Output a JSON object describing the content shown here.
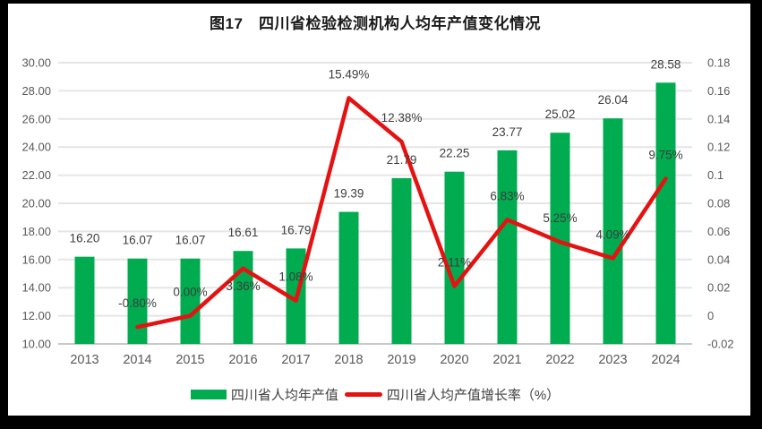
{
  "title": "图17　四川省检验检测机构人均年产值变化情况",
  "colors": {
    "bar": "#00AC4F",
    "line": "#E51212",
    "grid": "#E5E5E5",
    "axis_line": "#C9C9C9",
    "tick_text": "#595959",
    "label_text": "#3D3D3D",
    "background": "#FFFFFF",
    "border": "#000000"
  },
  "chart_data": {
    "type": "bar",
    "subtype": "combo-bar-line-dual-axis",
    "title": "图17　四川省检验检测机构人均年产值变化情况",
    "categories": [
      "2013",
      "2014",
      "2015",
      "2016",
      "2017",
      "2018",
      "2019",
      "2020",
      "2021",
      "2022",
      "2023",
      "2024"
    ],
    "series": [
      {
        "name": "四川省人均年产值",
        "type": "bar",
        "axis": "left",
        "color": "#00AC4F",
        "values": [
          16.2,
          16.07,
          16.07,
          16.61,
          16.79,
          19.39,
          21.79,
          22.25,
          23.77,
          25.02,
          26.04,
          28.58
        ],
        "labels": [
          "16.20",
          "16.07",
          "16.07",
          "16.61",
          "16.79",
          "19.39",
          "21.79",
          "22.25",
          "23.77",
          "25.02",
          "26.04",
          "28.58"
        ]
      },
      {
        "name": "四川省人均产值增长率（%）",
        "type": "line",
        "axis": "right",
        "color": "#E51212",
        "values": [
          null,
          -0.008,
          0.0,
          0.0336,
          0.0108,
          0.1549,
          0.1238,
          0.0211,
          0.0683,
          0.0525,
          0.0409,
          0.0975
        ],
        "labels": [
          null,
          "-0.80%",
          "0.00%",
          "3.36%",
          "1.08%",
          "15.49%",
          "12.38%",
          "2.11%",
          "6.83%",
          "5.25%",
          "4.09%",
          "9.75%"
        ],
        "label_sides": [
          null,
          "above",
          "above",
          "below",
          "above",
          "above",
          "above",
          "above",
          "above",
          "above",
          "above",
          "above"
        ]
      }
    ],
    "left_axis": {
      "min": 10,
      "max": 30,
      "step": 2,
      "ticks": [
        "30.00",
        "28.00",
        "26.00",
        "24.00",
        "22.00",
        "20.00",
        "18.00",
        "16.00",
        "14.00",
        "12.00",
        "10.00"
      ]
    },
    "right_axis": {
      "min": -0.02,
      "max": 0.18,
      "step": 0.02,
      "ticks": [
        "0.18",
        "0.16",
        "0.14",
        "0.12",
        "0.1",
        "0.08",
        "0.06",
        "0.04",
        "0.02",
        "0",
        "-0.02"
      ]
    },
    "grid": true,
    "legend_position": "bottom"
  }
}
